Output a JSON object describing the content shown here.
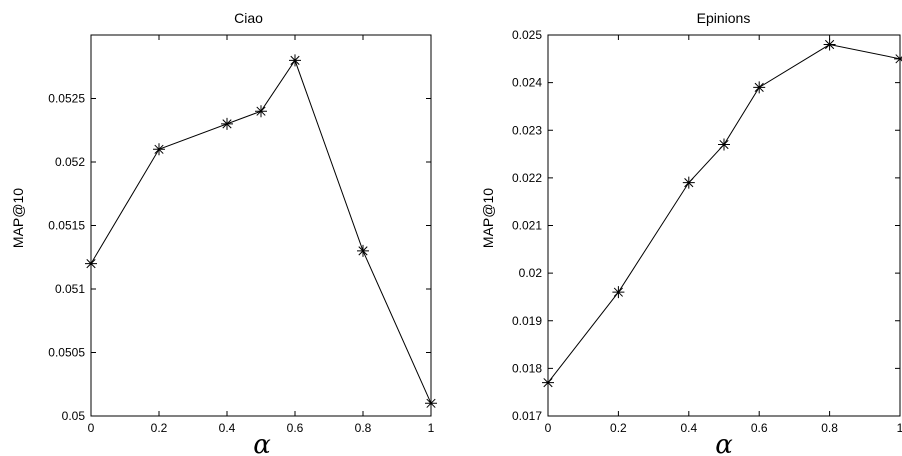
{
  "chart_data": [
    {
      "type": "line",
      "title": "Ciao",
      "xlabel": "α",
      "ylabel": "MAP@10",
      "xlim": [
        0,
        1
      ],
      "ylim": [
        0.05,
        0.053
      ],
      "xticks": [
        0,
        0.2,
        0.4,
        0.6,
        0.8,
        1
      ],
      "xtick_labels": [
        "0",
        "0.2",
        "0.4",
        "0.6",
        "0.8",
        "1"
      ],
      "yticks": [
        0.05,
        0.0505,
        0.051,
        0.0515,
        0.052,
        0.0525
      ],
      "ytick_labels": [
        "0.05",
        "0.0505",
        "0.051",
        "0.0515",
        "0.052",
        "0.0525"
      ],
      "grid": false,
      "marker": "asterisk",
      "color": "#000000",
      "x": [
        0,
        0.2,
        0.4,
        0.5,
        0.6,
        0.8,
        1
      ],
      "y": [
        0.0512,
        0.0521,
        0.0523,
        0.0524,
        0.0528,
        0.0513,
        0.0501
      ]
    },
    {
      "type": "line",
      "title": "Epinions",
      "xlabel": "α",
      "ylabel": "MAP@10",
      "xlim": [
        0,
        1
      ],
      "ylim": [
        0.017,
        0.025
      ],
      "xticks": [
        0,
        0.2,
        0.4,
        0.6,
        0.8,
        1
      ],
      "xtick_labels": [
        "0",
        "0.2",
        "0.4",
        "0.6",
        "0.8",
        "1"
      ],
      "yticks": [
        0.017,
        0.018,
        0.019,
        0.02,
        0.021,
        0.022,
        0.023,
        0.024,
        0.025
      ],
      "ytick_labels": [
        "0.017",
        "0.018",
        "0.019",
        "0.02",
        "0.021",
        "0.022",
        "0.023",
        "0.024",
        "0.025"
      ],
      "grid": false,
      "marker": "asterisk",
      "color": "#000000",
      "x": [
        0,
        0.2,
        0.4,
        0.5,
        0.6,
        0.8,
        1
      ],
      "y": [
        0.0177,
        0.0196,
        0.0219,
        0.0227,
        0.0239,
        0.0248,
        0.0245
      ]
    }
  ]
}
